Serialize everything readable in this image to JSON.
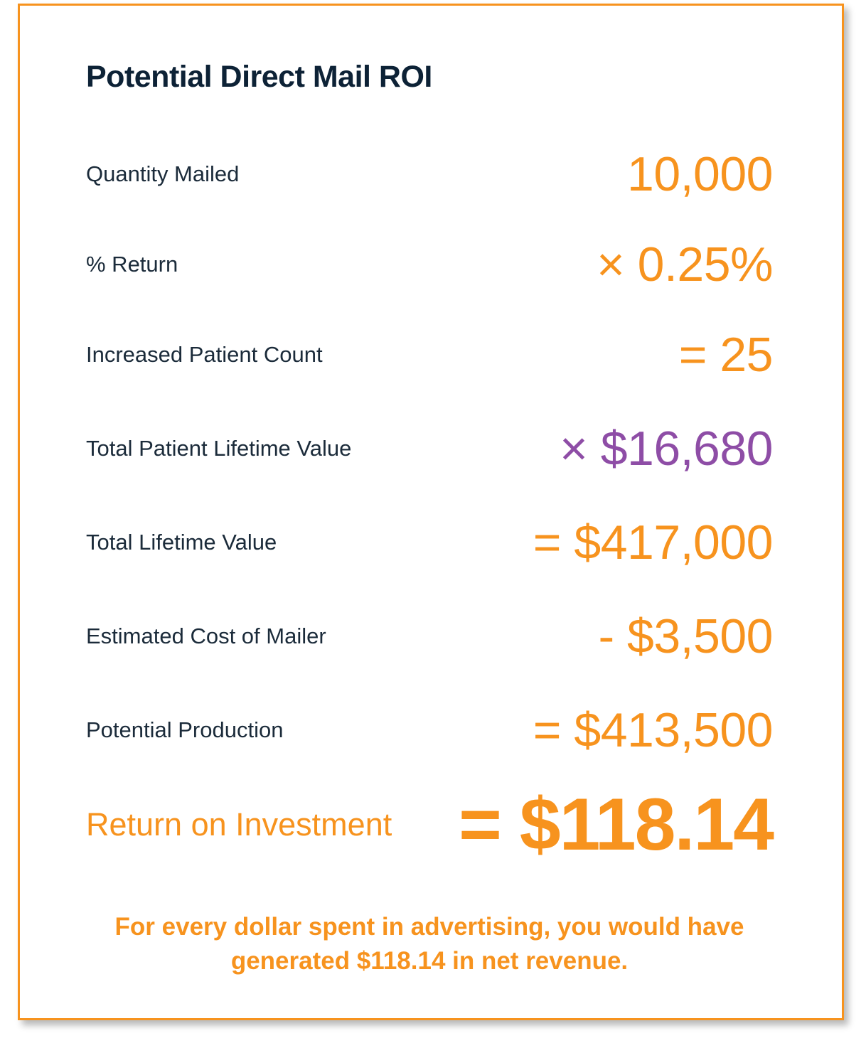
{
  "title": "Potential Direct Mail ROI",
  "rows": [
    {
      "label": "Quantity Mailed",
      "value": "10,000",
      "color": "#f7931e"
    },
    {
      "label": "% Return",
      "value": "× 0.25%",
      "color": "#f7931e"
    },
    {
      "label": "Increased Patient Count",
      "value": "= 25",
      "color": "#f7931e"
    },
    {
      "label": "Total Patient Lifetime Value",
      "value": "× $16,680",
      "color": "#8e4da6"
    },
    {
      "label": "Total Lifetime Value",
      "value": "= $417,000",
      "color": "#f7931e"
    },
    {
      "label": "Estimated Cost of Mailer",
      "value": "- $3,500",
      "color": "#f7931e"
    },
    {
      "label": "Potential Production",
      "value": "= $413,500",
      "color": "#f7931e"
    }
  ],
  "roi": {
    "label": "Return on Investment",
    "value": "= $118.14"
  },
  "footnote": {
    "line1": "For every dollar spent in advertising, you would have",
    "line2": "generated $118.14 in net revenue."
  },
  "colors": {
    "accent": "#f7931e",
    "highlight": "#8e4da6",
    "heading": "#0d2236",
    "text": "#1b2b3a",
    "border": "#f7931e"
  }
}
